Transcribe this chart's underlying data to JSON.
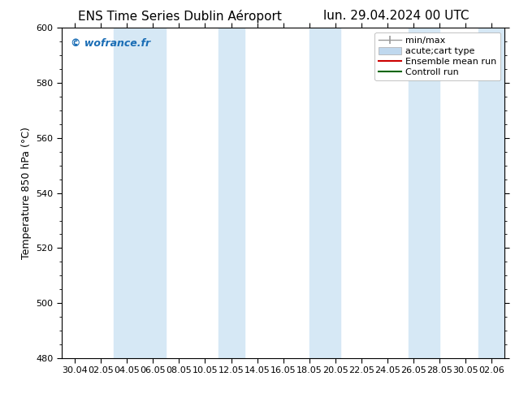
{
  "title_left": "ENS Time Series Dublin Aéroport",
  "title_right": "lun. 29.04.2024 00 UTC",
  "ylabel": "Temperature 850 hPa (°C)",
  "ylim": [
    480,
    600
  ],
  "yticks": [
    480,
    500,
    520,
    540,
    560,
    580,
    600
  ],
  "xlabel_ticks": [
    "30.04",
    "02.05",
    "04.05",
    "06.05",
    "08.05",
    "10.05",
    "12.05",
    "14.05",
    "16.05",
    "18.05",
    "20.05",
    "22.05",
    "24.05",
    "26.05",
    "28.05",
    "30.05",
    "02.06"
  ],
  "shade_color": "#d6e8f5",
  "background_color": "#ffffff",
  "plot_bg_color": "#ffffff",
  "watermark_text": "© wofrance.fr",
  "watermark_color": "#1a6db5",
  "legend_entries": [
    "min/max",
    "acute;cart type",
    "Ensemble mean run",
    "Controll run"
  ],
  "legend_colors": [
    "#999999",
    "#c0d8ee",
    "#cc0000",
    "#006600"
  ],
  "tick_color": "#000000",
  "spine_color": "#000000",
  "tick_fontsize": 8,
  "ylabel_fontsize": 9,
  "title_fontsize": 11,
  "legend_fontsize": 8
}
